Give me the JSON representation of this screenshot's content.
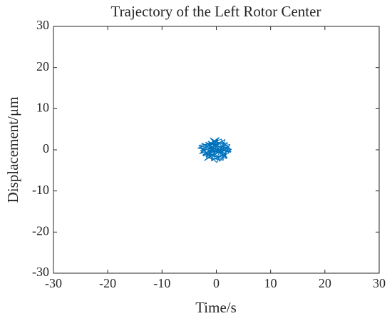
{
  "chart_data": {
    "type": "line",
    "title": "Trajectory of the Left Rotor Center",
    "xlabel": "Time/s",
    "ylabel": "Displacement/μm",
    "x": [
      0.2,
      -1.5,
      1.8,
      -2.6,
      0.9,
      2.3,
      -0.8,
      -3.2,
      1.2,
      2.6,
      -1.9,
      0.4,
      -2.8,
      1.9,
      -0.3,
      2.1,
      -2.2,
      0.7,
      -1.1,
      2.7,
      -3.0,
      0.1,
      1.5,
      -2.4,
      2.2,
      -0.6,
      -1.7,
      1.0,
      2.5,
      -2.9,
      0.5,
      -1.3,
      1.7,
      -2.0,
      2.8,
      -0.9,
      0.3,
      -3.4,
      1.4,
      2.0,
      -1.6,
      -0.2,
      2.4,
      -2.5,
      1.1,
      -0.7,
      -2.7,
      1.9,
      0.6,
      -1.4,
      2.6,
      -2.1,
      0.0,
      1.6,
      -3.1,
      2.3,
      -0.4,
      -1.8,
      1.3,
      0.8
    ],
    "series": [
      {
        "color": "#0072bd",
        "values": [
          0.5,
          2.1,
          -1.2,
          0.3,
          2.6,
          -0.8,
          -2.4,
          1.1,
          1.9,
          0.2,
          -1.7,
          2.8,
          -0.5,
          -2.1,
          1.4,
          1.7,
          -2.6,
          -0.3,
          2.9,
          -0.4,
          0.9,
          -3.1,
          1.2,
          -1.5,
          0.8,
          2.3,
          -0.9,
          -2.2,
          1.3,
          -0.2,
          3.0,
          0.6,
          -1.6,
          1.8,
          0.1,
          -2.7,
          2.4,
          0.4,
          -0.7,
          -2.0,
          1.5,
          -1.1,
          0.9,
          -1.3,
          2.2,
          -0.1,
          1.6,
          -1.0,
          -2.8,
          2.0,
          -0.6,
          0.7,
          -2.3,
          2.5,
          -0.9,
          0.3,
          1.2,
          -1.9,
          -2.5,
          1.0
        ]
      }
    ],
    "xlim": [
      -30,
      30
    ],
    "ylim": [
      -30,
      30
    ],
    "xticks": [
      -30,
      -20,
      -10,
      0,
      10,
      20,
      30
    ],
    "yticks": [
      -30,
      -20,
      -10,
      0,
      10,
      20,
      30
    ],
    "grid": false
  }
}
